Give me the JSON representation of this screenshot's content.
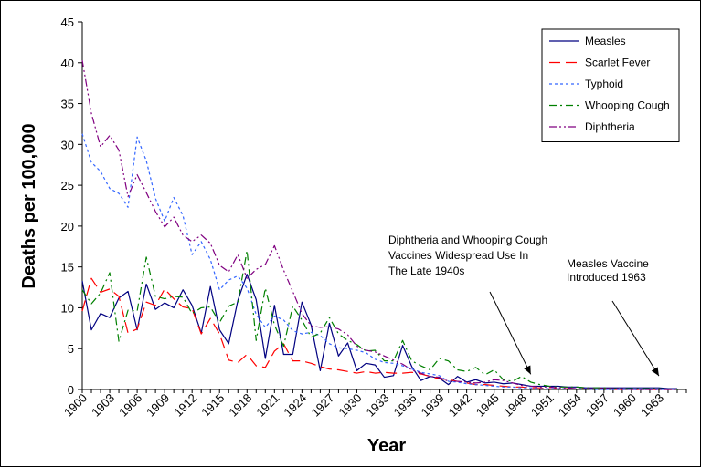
{
  "chart_data": {
    "type": "line",
    "xlabel": "Year",
    "ylabel": "Deaths per 100,000",
    "xlim": [
      1900,
      1966
    ],
    "ylim": [
      0,
      45
    ],
    "y_ticks": [
      0,
      5,
      10,
      15,
      20,
      25,
      30,
      35,
      40,
      45
    ],
    "x_ticks": [
      1900,
      1903,
      1906,
      1909,
      1912,
      1915,
      1918,
      1921,
      1924,
      1927,
      1930,
      1933,
      1936,
      1939,
      1942,
      1945,
      1948,
      1951,
      1954,
      1957,
      1960,
      1963
    ],
    "grid": false,
    "legend_position": "top-right",
    "series": [
      {
        "name": "Measles",
        "color": "#000080",
        "dash": "solid",
        "x": [
          1900,
          1901,
          1902,
          1903,
          1904,
          1905,
          1906,
          1907,
          1908,
          1909,
          1910,
          1911,
          1912,
          1913,
          1914,
          1915,
          1916,
          1917,
          1918,
          1919,
          1920,
          1921,
          1922,
          1923,
          1924,
          1925,
          1926,
          1927,
          1928,
          1929,
          1930,
          1931,
          1932,
          1933,
          1934,
          1935,
          1936,
          1937,
          1938,
          1939,
          1940,
          1941,
          1942,
          1943,
          1944,
          1945,
          1946,
          1947,
          1948,
          1949,
          1950,
          1951,
          1952,
          1953,
          1954,
          1955,
          1956,
          1957,
          1958,
          1959,
          1960,
          1961,
          1962,
          1963,
          1964,
          1965
        ],
        "values": [
          13.3,
          7.3,
          9.3,
          8.8,
          11.2,
          12.0,
          7.3,
          12.9,
          9.8,
          10.6,
          10.0,
          12.2,
          10.3,
          6.9,
          12.6,
          7.3,
          5.6,
          10.9,
          14.1,
          11.0,
          3.8,
          10.3,
          4.3,
          4.3,
          10.7,
          7.9,
          2.3,
          8.1,
          4.1,
          5.7,
          2.3,
          3.2,
          3.0,
          1.5,
          1.7,
          5.4,
          2.8,
          1.1,
          1.6,
          1.4,
          0.6,
          1.6,
          0.9,
          1.2,
          0.8,
          0.9,
          0.7,
          0.8,
          0.6,
          0.4,
          0.4,
          0.4,
          0.4,
          0.3,
          0.3,
          0.2,
          0.2,
          0.2,
          0.2,
          0.2,
          0.2,
          0.2,
          0.2,
          0.2,
          0.1,
          0.1
        ]
      },
      {
        "name": "Scarlet Fever",
        "color": "#FF0000",
        "dash": "long-dash",
        "x": [
          1900,
          1901,
          1902,
          1903,
          1904,
          1905,
          1906,
          1907,
          1908,
          1909,
          1910,
          1911,
          1912,
          1913,
          1914,
          1915,
          1916,
          1917,
          1918,
          1919,
          1920,
          1921,
          1922,
          1923,
          1924,
          1925,
          1926,
          1927,
          1928,
          1929,
          1930,
          1931,
          1932,
          1933,
          1934,
          1935,
          1936,
          1937,
          1938,
          1939,
          1940,
          1941,
          1942,
          1943,
          1944,
          1945,
          1946,
          1947,
          1948,
          1949,
          1950,
          1951,
          1952,
          1953,
          1954,
          1955,
          1956,
          1957,
          1958,
          1959,
          1960,
          1961,
          1962,
          1963,
          1964,
          1965
        ],
        "values": [
          9.6,
          13.6,
          11.9,
          12.3,
          11.4,
          6.9,
          7.4,
          10.7,
          10.3,
          12.3,
          11.1,
          10.1,
          9.9,
          6.8,
          8.7,
          6.8,
          3.6,
          3.3,
          4.3,
          2.9,
          2.7,
          4.7,
          5.6,
          3.5,
          3.5,
          3.2,
          2.8,
          2.5,
          2.4,
          2.2,
          2.0,
          2.2,
          2.0,
          2.1,
          2.0,
          2.0,
          2.1,
          1.9,
          1.6,
          1.3,
          1.2,
          1.0,
          0.8,
          0.6,
          0.6,
          0.5,
          0.4,
          0.3,
          0.3,
          0.2,
          0.2,
          0.1,
          0.1,
          0.1,
          0.1,
          0.1,
          0.1,
          0.1,
          0.0,
          0.0,
          0.0,
          0.0,
          0.0,
          0.0,
          0.0,
          0.0
        ]
      },
      {
        "name": "Typhoid",
        "color": "#3366FF",
        "dash": "dotted",
        "x": [
          1900,
          1901,
          1902,
          1903,
          1904,
          1905,
          1906,
          1907,
          1908,
          1909,
          1910,
          1911,
          1912,
          1913,
          1914,
          1915,
          1916,
          1917,
          1918,
          1919,
          1920,
          1921,
          1922,
          1923,
          1924,
          1925,
          1926,
          1927,
          1928,
          1929,
          1930,
          1931,
          1932,
          1933,
          1934,
          1935,
          1936,
          1937,
          1938,
          1939,
          1940,
          1941,
          1942,
          1943,
          1944,
          1945,
          1946,
          1947,
          1948,
          1949,
          1950,
          1951,
          1952,
          1953,
          1954,
          1955,
          1956,
          1957,
          1958,
          1959,
          1960,
          1961,
          1962,
          1963,
          1964,
          1965
        ],
        "values": [
          31.3,
          27.8,
          26.7,
          24.6,
          24.0,
          22.3,
          30.9,
          28.0,
          23.4,
          20.6,
          23.5,
          21.3,
          16.5,
          18.1,
          15.9,
          12.2,
          13.4,
          13.9,
          12.4,
          9.2,
          7.6,
          9.0,
          8.5,
          7.2,
          6.8,
          7.0,
          6.6,
          5.6,
          5.1,
          5.0,
          4.8,
          4.5,
          3.7,
          3.3,
          3.2,
          2.9,
          2.5,
          2.1,
          1.9,
          1.7,
          1.0,
          0.9,
          0.7,
          0.6,
          0.5,
          0.4,
          0.3,
          0.3,
          0.2,
          0.2,
          0.1,
          0.1,
          0.1,
          0.1,
          0.1,
          0.1,
          0.0,
          0.0,
          0.0,
          0.0,
          0.0,
          0.0,
          0.0,
          0.0,
          0.0,
          0.0
        ]
      },
      {
        "name": "Whooping Cough",
        "color": "#008000",
        "dash": "dash-dot",
        "x": [
          1900,
          1901,
          1902,
          1903,
          1904,
          1905,
          1906,
          1907,
          1908,
          1909,
          1910,
          1911,
          1912,
          1913,
          1914,
          1915,
          1916,
          1917,
          1918,
          1919,
          1920,
          1921,
          1922,
          1923,
          1924,
          1925,
          1926,
          1927,
          1928,
          1929,
          1930,
          1931,
          1932,
          1933,
          1934,
          1935,
          1936,
          1937,
          1938,
          1939,
          1940,
          1941,
          1942,
          1943,
          1944,
          1945,
          1946,
          1947,
          1948,
          1949,
          1950,
          1951,
          1952,
          1953,
          1954,
          1955,
          1956,
          1957,
          1958,
          1959,
          1960,
          1961,
          1962,
          1963,
          1964,
          1965
        ],
        "values": [
          12.2,
          10.5,
          11.8,
          14.3,
          5.9,
          9.7,
          9.6,
          16.2,
          11.4,
          11.1,
          11.4,
          11.3,
          9.3,
          10.0,
          10.1,
          8.2,
          10.2,
          10.7,
          17.0,
          6.0,
          12.4,
          7.9,
          5.3,
          10.2,
          8.5,
          6.4,
          6.9,
          8.8,
          6.8,
          6.0,
          5.5,
          4.7,
          4.8,
          3.5,
          3.5,
          6.0,
          3.5,
          2.9,
          2.4,
          3.8,
          3.5,
          2.4,
          2.2,
          2.7,
          1.8,
          2.4,
          1.2,
          1.0,
          1.6,
          0.9,
          0.6,
          0.4,
          0.3,
          0.3,
          0.3,
          0.2,
          0.2,
          0.2,
          0.1,
          0.1,
          0.1,
          0.1,
          0.1,
          0.1,
          0.0,
          0.0
        ]
      },
      {
        "name": "Diphtheria",
        "color": "#800080",
        "dash": "dash-dot-dot",
        "x": [
          1900,
          1901,
          1902,
          1903,
          1904,
          1905,
          1906,
          1907,
          1908,
          1909,
          1910,
          1911,
          1912,
          1913,
          1914,
          1915,
          1916,
          1917,
          1918,
          1919,
          1920,
          1921,
          1922,
          1923,
          1924,
          1925,
          1926,
          1927,
          1928,
          1929,
          1930,
          1931,
          1932,
          1933,
          1934,
          1935,
          1936,
          1937,
          1938,
          1939,
          1940,
          1941,
          1942,
          1943,
          1944,
          1945,
          1946,
          1947,
          1948,
          1949,
          1950,
          1951,
          1952,
          1953,
          1954,
          1955,
          1956,
          1957,
          1958,
          1959,
          1960,
          1961,
          1962,
          1963,
          1964,
          1965
        ],
        "values": [
          40.3,
          33.8,
          29.7,
          31.1,
          29.3,
          23.6,
          26.3,
          24.1,
          21.8,
          19.9,
          21.1,
          18.9,
          18.1,
          18.9,
          17.9,
          15.2,
          14.4,
          16.5,
          13.6,
          14.7,
          15.3,
          17.6,
          14.6,
          12.0,
          9.3,
          7.8,
          7.6,
          7.7,
          7.4,
          6.7,
          5.3,
          4.8,
          4.6,
          4.1,
          3.6,
          3.1,
          2.4,
          2.0,
          1.6,
          1.5,
          1.0,
          1.0,
          0.9,
          0.8,
          0.9,
          1.2,
          1.1,
          0.8,
          0.5,
          0.4,
          0.3,
          0.3,
          0.2,
          0.2,
          0.1,
          0.1,
          0.1,
          0.1,
          0.1,
          0.1,
          0.0,
          0.0,
          0.0,
          0.0,
          0.0,
          0.0
        ]
      }
    ],
    "annotations": [
      {
        "lines": [
          "Diphtheria and Whooping Cough",
          "Vaccines Widespread Use In",
          "The Late 1940s"
        ],
        "arrow_to": {
          "x": 1949,
          "y": 0.3
        }
      },
      {
        "lines": [
          "Measles Vaccine",
          "Introduced 1963"
        ],
        "arrow_to": {
          "x": 1963,
          "y": 0.1
        }
      }
    ]
  }
}
